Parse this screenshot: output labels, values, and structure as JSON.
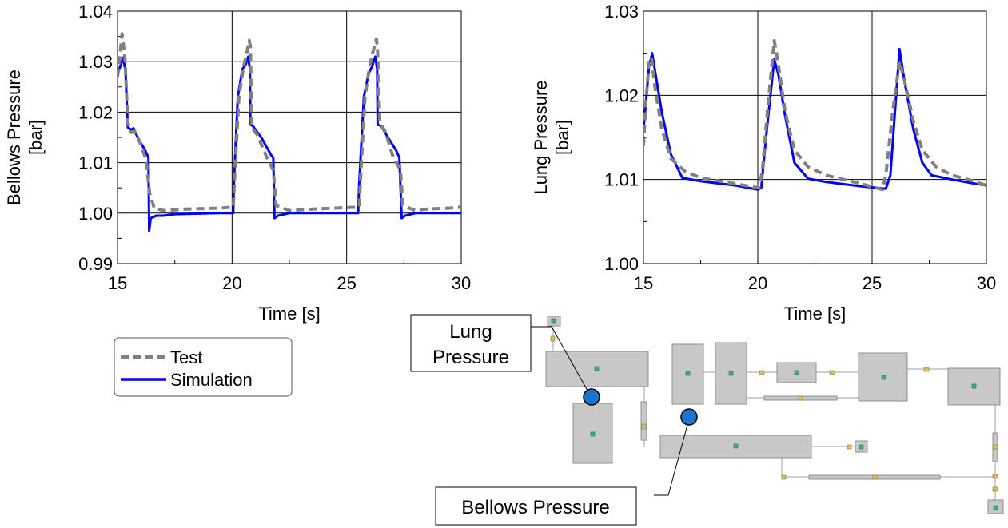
{
  "chart_data": [
    {
      "type": "line",
      "ylabel": "Bellows Pressure [bar]",
      "xlabel": "Time [s]",
      "xlim": [
        15,
        30
      ],
      "ylim": [
        0.99,
        1.04
      ],
      "x_ticks": [
        15,
        20,
        25,
        30
      ],
      "y_ticks": [
        0.99,
        1.0,
        1.01,
        1.02,
        1.03,
        1.04
      ],
      "y_tick_labels": [
        "0.99",
        "1.00",
        "1.01",
        "1.02",
        "1.03",
        "1.04"
      ],
      "x_tick_labels": [
        "15",
        "20",
        "25",
        "30"
      ],
      "grid": true,
      "series": [
        {
          "name": "Test",
          "style": "dashed",
          "color": "#808080",
          "points": [
            [
              15.0,
              1.027
            ],
            [
              15.1,
              1.031
            ],
            [
              15.2,
              1.0355
            ],
            [
              15.32,
              1.031
            ],
            [
              15.45,
              1.018
            ],
            [
              15.6,
              1.016
            ],
            [
              15.75,
              1.0162
            ],
            [
              16.0,
              1.0138
            ],
            [
              16.25,
              1.0105
            ],
            [
              16.4,
              1.004
            ],
            [
              16.6,
              1.001
            ],
            [
              17.0,
              1.0005
            ],
            [
              18.0,
              1.0008
            ],
            [
              19.5,
              1.001
            ],
            [
              20.05,
              1.0012
            ],
            [
              20.12,
              1.008
            ],
            [
              20.3,
              1.023
            ],
            [
              20.5,
              1.029
            ],
            [
              20.65,
              1.032
            ],
            [
              20.75,
              1.0342
            ],
            [
              20.8,
              1.033
            ],
            [
              20.85,
              1.017
            ],
            [
              21.1,
              1.0155
            ],
            [
              21.5,
              1.0112
            ],
            [
              21.8,
              1.0085
            ],
            [
              21.92,
              1.0015
            ],
            [
              22.5,
              1.0005
            ],
            [
              23.5,
              1.0008
            ],
            [
              24.5,
              1.001
            ],
            [
              25.55,
              1.0012
            ],
            [
              25.62,
              1.008
            ],
            [
              25.8,
              1.023
            ],
            [
              26.0,
              1.029
            ],
            [
              26.15,
              1.032
            ],
            [
              26.3,
              1.0345
            ],
            [
              26.35,
              1.032
            ],
            [
              26.45,
              1.018
            ],
            [
              26.7,
              1.016
            ],
            [
              27.0,
              1.0115
            ],
            [
              27.35,
              1.0085
            ],
            [
              27.45,
              1.0015
            ],
            [
              28.0,
              1.0005
            ],
            [
              28.5,
              1.0008
            ],
            [
              29.5,
              1.001
            ],
            [
              30.0,
              1.0012
            ]
          ]
        },
        {
          "name": "Simulation",
          "style": "solid",
          "color": "#0000FF",
          "points": [
            [
              15.0,
              1.0275
            ],
            [
              15.15,
              1.0295
            ],
            [
              15.25,
              1.0308
            ],
            [
              15.35,
              1.028
            ],
            [
              15.45,
              1.017
            ],
            [
              15.6,
              1.0165
            ],
            [
              15.7,
              1.0168
            ],
            [
              15.9,
              1.0148
            ],
            [
              16.2,
              1.0125
            ],
            [
              16.35,
              1.011
            ],
            [
              16.38,
              0.9965
            ],
            [
              16.45,
              0.999
            ],
            [
              16.7,
              0.9995
            ],
            [
              17.0,
              0.9995
            ],
            [
              17.5,
              0.9998
            ],
            [
              19.5,
              1.0
            ],
            [
              20.05,
              1.0
            ],
            [
              20.08,
              1.006
            ],
            [
              20.25,
              1.023
            ],
            [
              20.45,
              1.0285
            ],
            [
              20.6,
              1.0295
            ],
            [
              20.7,
              1.031
            ],
            [
              20.78,
              1.0285
            ],
            [
              20.8,
              1.0175
            ],
            [
              20.9,
              1.0173
            ],
            [
              21.3,
              1.0148
            ],
            [
              21.7,
              1.0115
            ],
            [
              21.8,
              1.011
            ],
            [
              21.85,
              0.999
            ],
            [
              22.0,
              0.9995
            ],
            [
              22.5,
              1.0
            ],
            [
              25.5,
              1.0
            ],
            [
              25.55,
              1.006
            ],
            [
              25.75,
              1.023
            ],
            [
              25.95,
              1.0275
            ],
            [
              26.1,
              1.029
            ],
            [
              26.25,
              1.031
            ],
            [
              26.33,
              1.0285
            ],
            [
              26.35,
              1.0175
            ],
            [
              26.5,
              1.0173
            ],
            [
              26.8,
              1.015
            ],
            [
              27.15,
              1.0125
            ],
            [
              27.3,
              1.011
            ],
            [
              27.4,
              0.999
            ],
            [
              27.55,
              0.9995
            ],
            [
              28.0,
              1.0
            ],
            [
              30.0,
              1.0
            ]
          ]
        }
      ]
    },
    {
      "type": "line",
      "ylabel": "Lung Pressure [bar]",
      "xlabel": "Time [s]",
      "xlim": [
        15,
        30
      ],
      "ylim": [
        1.0,
        1.03
      ],
      "x_ticks": [
        15,
        20,
        25,
        30
      ],
      "y_ticks": [
        1.0,
        1.01,
        1.02,
        1.03
      ],
      "y_tick_labels": [
        "1.00",
        "1.01",
        "1.02",
        "1.03"
      ],
      "x_tick_labels": [
        "15",
        "20",
        "25",
        "30"
      ],
      "grid": true,
      "series": [
        {
          "name": "Test",
          "style": "dashed",
          "color": "#808080",
          "points": [
            [
              15.0,
              1.014
            ],
            [
              15.1,
              1.019
            ],
            [
              15.25,
              1.024
            ],
            [
              15.35,
              1.0245
            ],
            [
              15.5,
              1.021
            ],
            [
              15.8,
              1.016
            ],
            [
              16.2,
              1.0125
            ],
            [
              16.8,
              1.011
            ],
            [
              17.5,
              1.0102
            ],
            [
              19.0,
              1.0095
            ],
            [
              20.05,
              1.009
            ],
            [
              20.2,
              1.011
            ],
            [
              20.45,
              1.019
            ],
            [
              20.72,
              1.0265
            ],
            [
              20.85,
              1.0245
            ],
            [
              21.2,
              1.018
            ],
            [
              21.6,
              1.0135
            ],
            [
              22.2,
              1.0115
            ],
            [
              23.0,
              1.0105
            ],
            [
              24.5,
              1.0095
            ],
            [
              25.45,
              1.0088
            ],
            [
              25.6,
              1.0105
            ],
            [
              25.9,
              1.018
            ],
            [
              26.2,
              1.024
            ],
            [
              26.4,
              1.022
            ],
            [
              26.8,
              1.017
            ],
            [
              27.2,
              1.0135
            ],
            [
              27.8,
              1.0115
            ],
            [
              28.5,
              1.0105
            ],
            [
              29.2,
              1.01
            ],
            [
              30.0,
              1.0093
            ]
          ]
        },
        {
          "name": "Simulation",
          "style": "solid",
          "color": "#0000FF",
          "points": [
            [
              15.0,
              1.016
            ],
            [
              15.1,
              1.019
            ],
            [
              15.25,
              1.0235
            ],
            [
              15.38,
              1.025
            ],
            [
              15.5,
              1.023
            ],
            [
              15.8,
              1.018
            ],
            [
              16.2,
              1.013
            ],
            [
              16.7,
              1.0102
            ],
            [
              17.5,
              1.0098
            ],
            [
              19.0,
              1.0093
            ],
            [
              20.0,
              1.0088
            ],
            [
              20.15,
              1.009
            ],
            [
              20.4,
              1.016
            ],
            [
              20.72,
              1.0243
            ],
            [
              20.9,
              1.0225
            ],
            [
              21.2,
              1.0175
            ],
            [
              21.6,
              1.012
            ],
            [
              22.2,
              1.0101
            ],
            [
              23.0,
              1.0097
            ],
            [
              24.5,
              1.0092
            ],
            [
              25.6,
              1.0089
            ],
            [
              25.8,
              1.0105
            ],
            [
              26.0,
              1.018
            ],
            [
              26.2,
              1.0255
            ],
            [
              26.4,
              1.022
            ],
            [
              26.8,
              1.016
            ],
            [
              27.2,
              1.012
            ],
            [
              27.6,
              1.0105
            ],
            [
              28.5,
              1.01
            ],
            [
              29.5,
              1.0095
            ],
            [
              30.0,
              1.0093
            ]
          ]
        }
      ]
    }
  ],
  "legend": {
    "items": [
      {
        "label": "Test",
        "style": "dashed",
        "color": "#808080"
      },
      {
        "label": "Simulation",
        "style": "solid",
        "color": "#0000FF"
      }
    ]
  },
  "schematic": {
    "callouts": [
      {
        "label_lines": [
          "Lung",
          "Pressure"
        ],
        "marker_color": "#1874CD"
      },
      {
        "label_lines": [
          "Bellows Pressure"
        ],
        "marker_color": "#1874CD"
      }
    ],
    "block_color": "#C8C8C8",
    "node_color": "#3CB371"
  }
}
